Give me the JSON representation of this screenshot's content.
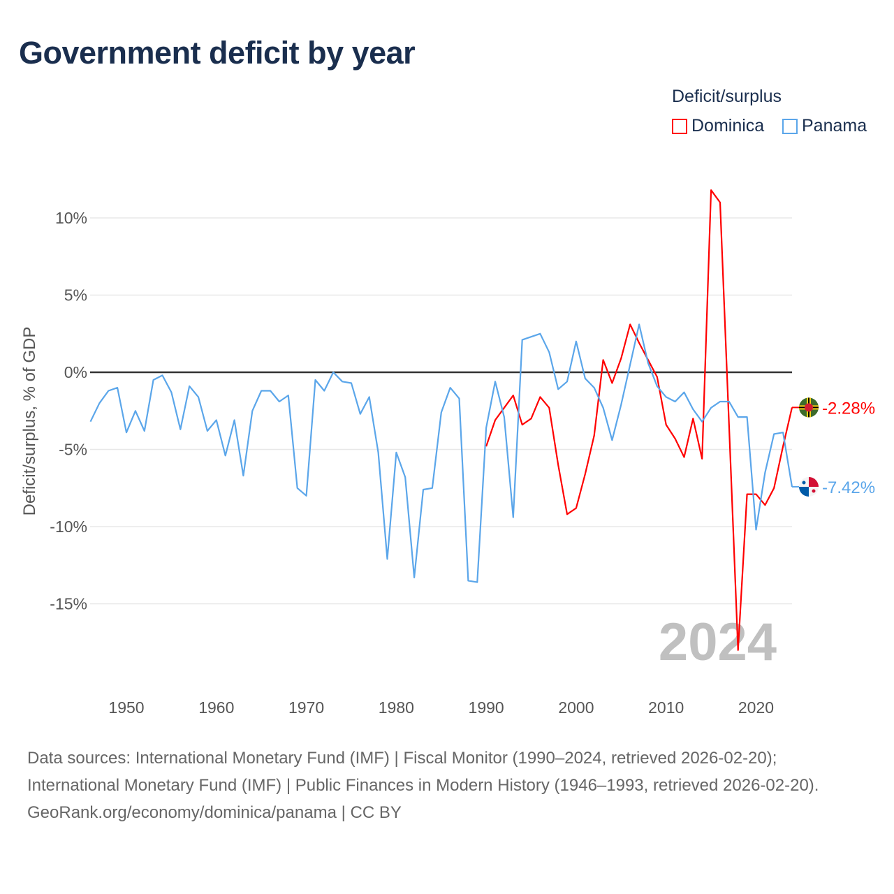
{
  "title": "Government deficit by year",
  "chart_data": {
    "type": "line",
    "title": "Government deficit by year",
    "xlabel": "",
    "ylabel": "Deficit/surplus, % of GDP",
    "xlim": [
      1946,
      2024
    ],
    "ylim": [
      -19,
      13
    ],
    "x_ticks": [
      1950,
      1960,
      1970,
      1980,
      1990,
      2000,
      2010,
      2020
    ],
    "x_tick_labels": [
      "1950",
      "1960",
      "1970",
      "1980",
      "1990",
      "2000",
      "2010",
      "2020"
    ],
    "y_ticks": [
      10,
      5,
      0,
      -5,
      -10,
      -15
    ],
    "y_tick_labels": [
      "10%",
      "5%",
      "0%",
      "-5%",
      "-10%",
      "-15%"
    ],
    "grid": true,
    "year_watermark": "2024",
    "legend": {
      "title": "Deficit/surplus",
      "placement": "top-right"
    },
    "series": [
      {
        "name": "Dominica",
        "color": "#ff0000",
        "start_year": 1990,
        "end_label": "-2.28%",
        "flag": "dominica-flag",
        "values": [
          -4.8,
          -3.1,
          -2.3,
          -1.5,
          -3.4,
          -3.0,
          -1.6,
          -2.3,
          -6.0,
          -9.2,
          -8.8,
          -6.6,
          -4.1,
          0.8,
          -0.7,
          0.9,
          3.1,
          1.9,
          0.8,
          -0.3,
          -3.4,
          -4.3,
          -5.5,
          -3.0,
          -5.6,
          11.8,
          11.0,
          -3.5,
          -18.0,
          -7.9,
          -7.9,
          -8.6,
          -7.5,
          -4.8,
          -2.28
        ]
      },
      {
        "name": "Panama",
        "color": "#5ba6ea",
        "start_year": 1946,
        "end_label": "-7.42%",
        "flag": "panama-flag",
        "values": [
          -3.2,
          -2.0,
          -1.2,
          -1.0,
          -3.9,
          -2.5,
          -3.8,
          -0.5,
          -0.2,
          -1.3,
          -3.7,
          -0.9,
          -1.6,
          -3.8,
          -3.1,
          -5.4,
          -3.1,
          -6.7,
          -2.5,
          -1.2,
          -1.2,
          -1.9,
          -1.5,
          -7.5,
          -8.0,
          -0.5,
          -1.2,
          0.0,
          -0.6,
          -0.7,
          -2.7,
          -1.6,
          -5.2,
          -12.1,
          -5.2,
          -6.8,
          -13.3,
          -7.6,
          -7.5,
          -2.6,
          -1.0,
          -1.7,
          -13.5,
          -13.6,
          -3.6,
          -0.6,
          -2.9,
          -9.4,
          2.1,
          2.3,
          2.5,
          1.3,
          -1.1,
          -0.6,
          2.0,
          -0.4,
          -1.0,
          -2.3,
          -4.4,
          -2.1,
          0.5,
          3.1,
          0.6,
          -0.9,
          -1.6,
          -1.9,
          -1.3,
          -2.4,
          -3.2,
          -2.3,
          -1.9,
          -1.9,
          -2.9,
          -2.9,
          -10.2,
          -6.5,
          -4.0,
          -3.9,
          -7.42
        ]
      }
    ]
  },
  "footer": {
    "sources": "Data sources: International Monetary Fund (IMF) | Fiscal Monitor (1990–2024, retrieved 2026-02-20); International Monetary Fund (IMF) | Public Finances in Modern History (1946–1993, retrieved 2026-02-20).",
    "attribution": "GeoRank.org/economy/dominica/panama | CC BY"
  }
}
